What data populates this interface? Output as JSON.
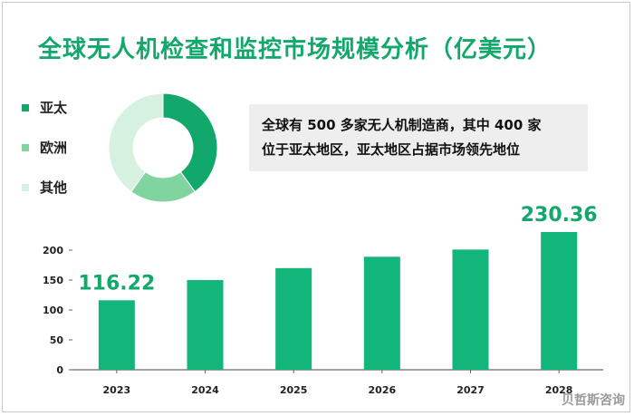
{
  "title": "全球无人机检查和监控市场规模分析（亿美元）",
  "legend": [
    {
      "label": "亚太",
      "color": "#12a86b"
    },
    {
      "label": "欧洲",
      "color": "#7fd49f"
    },
    {
      "label": "其他",
      "color": "#d7f1e1"
    }
  ],
  "callout": {
    "line1": "全球有 500 多家无人机制造商，其中 400 家",
    "line2": "位于亚太地区，亚太地区占据市场领先地位"
  },
  "watermark": "贝哲斯咨询",
  "colors": {
    "accent": "#12a86b",
    "bar": "#12b67a"
  },
  "chart_data": [
    {
      "type": "pie",
      "variant": "donut",
      "categories": [
        "亚太",
        "欧洲",
        "其他"
      ],
      "values": [
        0.4,
        0.2,
        0.4
      ],
      "colors": [
        "#12a86b",
        "#7fd49f",
        "#d7f1e1"
      ]
    },
    {
      "type": "bar",
      "categories": [
        "2023",
        "2024",
        "2025",
        "2026",
        "2027",
        "2028"
      ],
      "values": [
        116.22,
        150,
        170,
        189,
        201,
        230.36
      ],
      "ylim": [
        0,
        230.36
      ],
      "yticks": [
        0,
        50,
        100,
        150,
        200
      ],
      "annotations": [
        {
          "category": "2023",
          "text": "116.22"
        },
        {
          "category": "2028",
          "text": "230.36"
        }
      ],
      "color": "#12b67a",
      "grid": false
    }
  ]
}
